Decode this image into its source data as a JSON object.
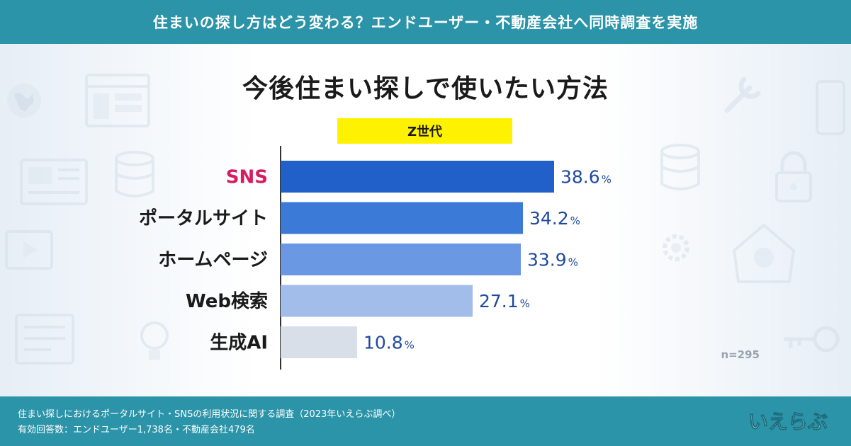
{
  "banner": {
    "text": "住まいの探し方はどう変わる？エンドユーザー・不動産会社へ同時調査を実施"
  },
  "chart_data": {
    "type": "bar",
    "orientation": "horizontal",
    "title": "今後住まい探しで使いたい方法",
    "subtitle": "Z世代",
    "categories": [
      "SNS",
      "ポータルサイト",
      "ホームページ",
      "Web検索",
      "生成AI"
    ],
    "values": [
      38.6,
      34.2,
      33.9,
      27.1,
      10.8
    ],
    "value_unit": "%",
    "xlim": [
      0,
      50
    ],
    "grid": false,
    "legend": "none",
    "sample_note": "n=295",
    "bar_colors": [
      "#2060c8",
      "#3b7ad6",
      "#6a98e2",
      "#a3bdea",
      "#d9dfe9"
    ],
    "highlight_category_color": "#d81b5f",
    "value_label_color": "#1f4aa0"
  },
  "footer": {
    "line1": "住まい探しにおけるポータルサイト・SNSの利用状況に関する調査（2023年いえらぶ調べ）",
    "line2": "有効回答数：エンドユーザー1,738名・不動産会社479名",
    "logo_text": "いえらぶ"
  },
  "colors": {
    "banner": "#2c94a8",
    "label_yellow": "#fff200",
    "text_dark": "#1a1a1a",
    "note_gray": "#9aa3ad"
  },
  "icons": [
    "globe-icon",
    "browser-window-icon",
    "database-icon",
    "lock-icon",
    "wrench-icon",
    "gear-icon",
    "smartphone-icon",
    "lightbulb-icon",
    "key-icon",
    "house-icon",
    "document-icon",
    "video-play-icon"
  ]
}
